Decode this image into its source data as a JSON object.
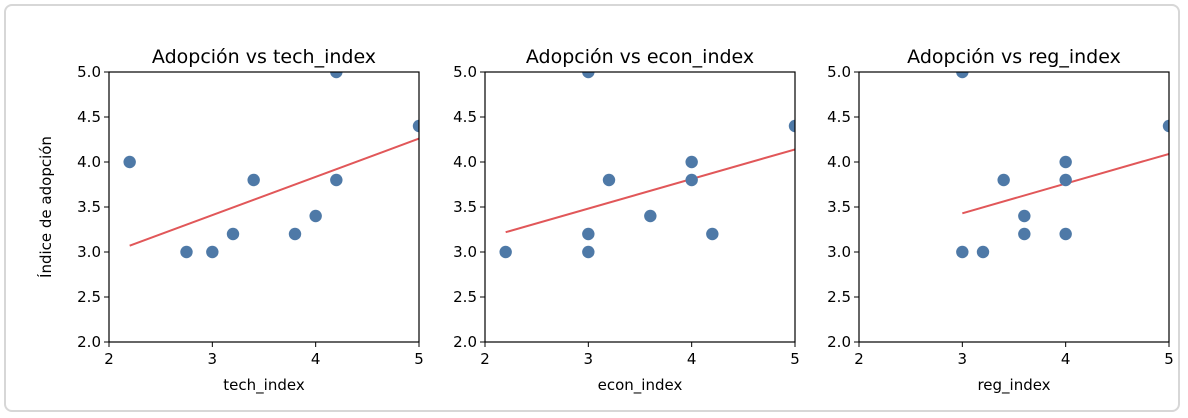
{
  "chart_data": [
    {
      "type": "scatter",
      "title": "Adopción vs tech_index",
      "xlabel": "tech_index",
      "ylabel": "Índice de adopción",
      "xlim": [
        2,
        5
      ],
      "ylim": [
        2.0,
        5.0
      ],
      "xticks": [
        "2",
        "3",
        "4",
        "5"
      ],
      "yticks": [
        "2.0",
        "2.5",
        "3.0",
        "3.5",
        "4.0",
        "4.5",
        "5.0"
      ],
      "points": [
        {
          "x": 2.2,
          "y": 4.0
        },
        {
          "x": 2.75,
          "y": 3.0
        },
        {
          "x": 3.0,
          "y": 3.0
        },
        {
          "x": 3.2,
          "y": 3.2
        },
        {
          "x": 3.4,
          "y": 3.8
        },
        {
          "x": 3.8,
          "y": 3.2
        },
        {
          "x": 4.0,
          "y": 3.4
        },
        {
          "x": 4.2,
          "y": 3.8
        },
        {
          "x": 4.2,
          "y": 5.0
        },
        {
          "x": 5.0,
          "y": 4.4
        }
      ],
      "fit_line": {
        "x": [
          2.2,
          5.0
        ],
        "y": [
          3.07,
          4.26
        ]
      }
    },
    {
      "type": "scatter",
      "title": "Adopción vs econ_index",
      "xlabel": "econ_index",
      "ylabel": "",
      "xlim": [
        2,
        5
      ],
      "ylim": [
        2.0,
        5.0
      ],
      "xticks": [
        "2",
        "3",
        "4",
        "5"
      ],
      "yticks": [
        "2.0",
        "2.5",
        "3.0",
        "3.5",
        "4.0",
        "4.5",
        "5.0"
      ],
      "points": [
        {
          "x": 2.2,
          "y": 3.0
        },
        {
          "x": 3.0,
          "y": 3.0
        },
        {
          "x": 3.0,
          "y": 3.2
        },
        {
          "x": 3.0,
          "y": 5.0
        },
        {
          "x": 3.2,
          "y": 3.8
        },
        {
          "x": 3.6,
          "y": 3.4
        },
        {
          "x": 4.0,
          "y": 3.8
        },
        {
          "x": 4.0,
          "y": 4.0
        },
        {
          "x": 4.2,
          "y": 3.2
        },
        {
          "x": 5.0,
          "y": 4.4
        }
      ],
      "fit_line": {
        "x": [
          2.2,
          5.0
        ],
        "y": [
          3.22,
          4.14
        ]
      }
    },
    {
      "type": "scatter",
      "title": "Adopción vs reg_index",
      "xlabel": "reg_index",
      "ylabel": "",
      "xlim": [
        2,
        5
      ],
      "ylim": [
        2.0,
        5.0
      ],
      "xticks": [
        "2",
        "3",
        "4",
        "5"
      ],
      "yticks": [
        "2.0",
        "2.5",
        "3.0",
        "3.5",
        "4.0",
        "4.5",
        "5.0"
      ],
      "points": [
        {
          "x": 3.0,
          "y": 5.0
        },
        {
          "x": 3.0,
          "y": 3.0
        },
        {
          "x": 3.2,
          "y": 3.0
        },
        {
          "x": 3.4,
          "y": 3.8
        },
        {
          "x": 3.6,
          "y": 3.4
        },
        {
          "x": 3.6,
          "y": 3.2
        },
        {
          "x": 4.0,
          "y": 4.0
        },
        {
          "x": 4.0,
          "y": 3.8
        },
        {
          "x": 4.0,
          "y": 3.2
        },
        {
          "x": 5.0,
          "y": 4.4
        }
      ],
      "fit_line": {
        "x": [
          3.0,
          5.0
        ],
        "y": [
          3.43,
          4.09
        ]
      }
    }
  ],
  "colors": {
    "point": "#4e79a7",
    "fit_line": "#e15759",
    "axis": "#000000"
  }
}
